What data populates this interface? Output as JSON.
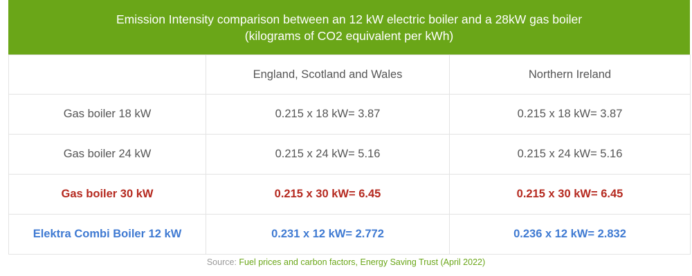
{
  "title": {
    "line1": "Emission Intensity comparison between an 12 kW electric boiler and a 28kW gas boiler",
    "line2": "(kilograms of CO2 equivalent per kWh)"
  },
  "table": {
    "header": [
      "",
      "England, Scotland and Wales",
      "Northern Ireland"
    ],
    "rows": [
      {
        "label": "Gas boiler 18 kW",
        "gb": "0.215 x 18 kW=  3.87",
        "ni": "0.215 x 18 kW=  3.87"
      },
      {
        "label": "Gas boiler 24 kW",
        "gb": "0.215 x 24 kW=  5.16",
        "ni": "0.215 x 24 kW=  5.16"
      },
      {
        "label": "Gas boiler 30 kW",
        "gb": "0.215 x 30 kW=  6.45",
        "ni": "0.215 x 30 kW=  6.45"
      },
      {
        "label": "Elektra Combi Boiler 12 kW",
        "gb": "0.231 x 12 kW= 2.772",
        "ni": "0.236 x 12 kW= 2.832"
      }
    ]
  },
  "source": {
    "prefix": "Source: ",
    "link_text": "Fuel prices and carbon factors, Energy Saving Trust (April 2022)"
  },
  "colors": {
    "title_bg": "#6aa618",
    "highlight_red": "#b5291f",
    "highlight_blue": "#3f7ad2",
    "link": "#6aa618"
  }
}
